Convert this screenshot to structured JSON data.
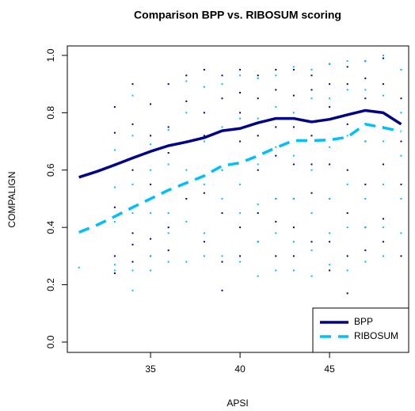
{
  "chart_data": {
    "type": "line",
    "title": "Comparison BPP vs. RIBOSUM scoring",
    "x_label": "APSI",
    "y_label": "COMPALIGN",
    "xlim": [
      30.35,
      49.42
    ],
    "ylim": [
      -0.036,
      1.033
    ],
    "xticks": [
      35,
      40,
      45
    ],
    "yticks": [
      {
        "value": 0,
        "label": "0.0"
      },
      0.2,
      0.4,
      0.6,
      0.8,
      {
        "value": 1,
        "label": "1.0"
      }
    ],
    "legend": "bottom-right",
    "x": [
      31,
      32,
      33,
      34,
      35,
      36,
      37,
      38,
      39,
      40,
      41,
      42,
      43,
      44,
      45,
      46,
      47,
      48,
      49
    ],
    "series": [
      {
        "name": "BPP",
        "color": "#00008b",
        "dash": false,
        "values": [
          0.575,
          0.595,
          0.618,
          0.642,
          0.665,
          0.685,
          0.698,
          0.713,
          0.737,
          0.745,
          0.765,
          0.78,
          0.78,
          0.768,
          0.777,
          0.793,
          0.808,
          0.8,
          0.76
        ]
      },
      {
        "name": "RIBOSUM",
        "color": "#00bfff",
        "dash": true,
        "values": [
          0.383,
          0.408,
          0.438,
          0.47,
          0.5,
          0.53,
          0.555,
          0.58,
          0.615,
          0.625,
          0.65,
          0.678,
          0.703,
          0.703,
          0.705,
          0.715,
          0.76,
          0.748,
          0.735
        ]
      }
    ],
    "points": [
      {
        "color": "#00008b",
        "columns": [
          {
            "x": 33,
            "values": [
              0.82,
              0.73,
              0.62,
              0.47,
              0.3,
              0.24
            ]
          },
          {
            "x": 34,
            "values": [
              0.9,
              0.76,
              0.6,
              0.38,
              0.34,
              0.28
            ]
          },
          {
            "x": 35,
            "values": [
              0.83,
              0.72,
              0.55,
              0.36,
              0.3
            ]
          },
          {
            "x": 36,
            "values": [
              0.9,
              0.75,
              0.66,
              0.4,
              0.32
            ]
          },
          {
            "x": 37,
            "values": [
              0.93,
              0.84,
              0.7,
              0.5
            ]
          },
          {
            "x": 38,
            "values": [
              0.95,
              0.8,
              0.72,
              0.52,
              0.35
            ]
          },
          {
            "x": 39,
            "values": [
              0.93,
              0.85,
              0.6,
              0.45,
              0.28,
              0.18
            ]
          },
          {
            "x": 40,
            "values": [
              0.95,
              0.87,
              0.8,
              0.7,
              0.4,
              0.3
            ]
          },
          {
            "x": 41,
            "values": [
              0.93,
              0.85,
              0.72,
              0.6,
              0.45,
              0.35
            ]
          },
          {
            "x": 42,
            "values": [
              0.95,
              0.88,
              0.75,
              0.65,
              0.5,
              0.42,
              0.3
            ]
          },
          {
            "x": 43,
            "values": [
              0.95,
              0.86,
              0.75,
              0.62,
              0.5,
              0.4,
              0.3
            ]
          },
          {
            "x": 44,
            "values": [
              0.93,
              0.88,
              0.72,
              0.62,
              0.52,
              0.35
            ]
          },
          {
            "x": 45,
            "values": [
              0.97,
              0.9,
              0.82,
              0.62,
              0.5,
              0.35,
              0.25
            ]
          },
          {
            "x": 46,
            "values": [
              0.96,
              0.9,
              0.76,
              0.6,
              0.45,
              0.3,
              0.17
            ]
          },
          {
            "x": 47,
            "values": [
              0.98,
              0.92,
              0.85,
              0.7,
              0.55,
              0.4,
              0.32
            ]
          },
          {
            "x": 48,
            "values": [
              0.99,
              0.9,
              0.75,
              0.62,
              0.43,
              0.35
            ]
          },
          {
            "x": 49,
            "values": [
              0.95,
              0.85,
              0.7,
              0.55,
              0.3
            ]
          }
        ]
      },
      {
        "color": "#00bfff",
        "columns": [
          {
            "x": 31,
            "values": [
              0.26
            ]
          },
          {
            "x": 33,
            "values": [
              0.67,
              0.54,
              0.42,
              0.27,
              0.25
            ]
          },
          {
            "x": 34,
            "values": [
              0.86,
              0.72,
              0.55,
              0.45,
              0.25,
              0.18
            ]
          },
          {
            "x": 35,
            "values": [
              0.69,
              0.6,
              0.45,
              0.3,
              0.25
            ]
          },
          {
            "x": 36,
            "values": [
              0.74,
              0.62,
              0.45,
              0.38,
              0.28
            ]
          },
          {
            "x": 37,
            "values": [
              0.91,
              0.8,
              0.6,
              0.42,
              0.28
            ]
          },
          {
            "x": 38,
            "values": [
              0.89,
              0.7,
              0.55,
              0.38,
              0.3
            ]
          },
          {
            "x": 39,
            "values": [
              0.9,
              0.75,
              0.6,
              0.5,
              0.3
            ]
          },
          {
            "x": 40,
            "values": [
              0.93,
              0.78,
              0.55,
              0.45,
              0.28
            ]
          },
          {
            "x": 41,
            "values": [
              0.92,
              0.78,
              0.62,
              0.48,
              0.35,
              0.23
            ]
          },
          {
            "x": 42,
            "values": [
              0.93,
              0.82,
              0.68,
              0.5,
              0.38,
              0.25
            ]
          },
          {
            "x": 43,
            "values": [
              0.96,
              0.8,
              0.65,
              0.5,
              0.35,
              0.25
            ]
          },
          {
            "x": 44,
            "values": [
              0.95,
              0.85,
              0.6,
              0.45,
              0.32,
              0.23
            ]
          },
          {
            "x": 45,
            "values": [
              0.97,
              0.85,
              0.68,
              0.5,
              0.38,
              0.27
            ]
          },
          {
            "x": 46,
            "values": [
              0.98,
              0.88,
              0.72,
              0.55,
              0.4,
              0.25
            ]
          },
          {
            "x": 47,
            "values": [
              0.98,
              0.88,
              0.7,
              0.5,
              0.4,
              0.28
            ]
          },
          {
            "x": 48,
            "values": [
              1.0,
              0.86,
              0.7,
              0.55,
              0.4,
              0.3
            ]
          },
          {
            "x": 49,
            "values": [
              0.95,
              0.8,
              0.65,
              0.5,
              0.38
            ]
          }
        ]
      }
    ]
  }
}
